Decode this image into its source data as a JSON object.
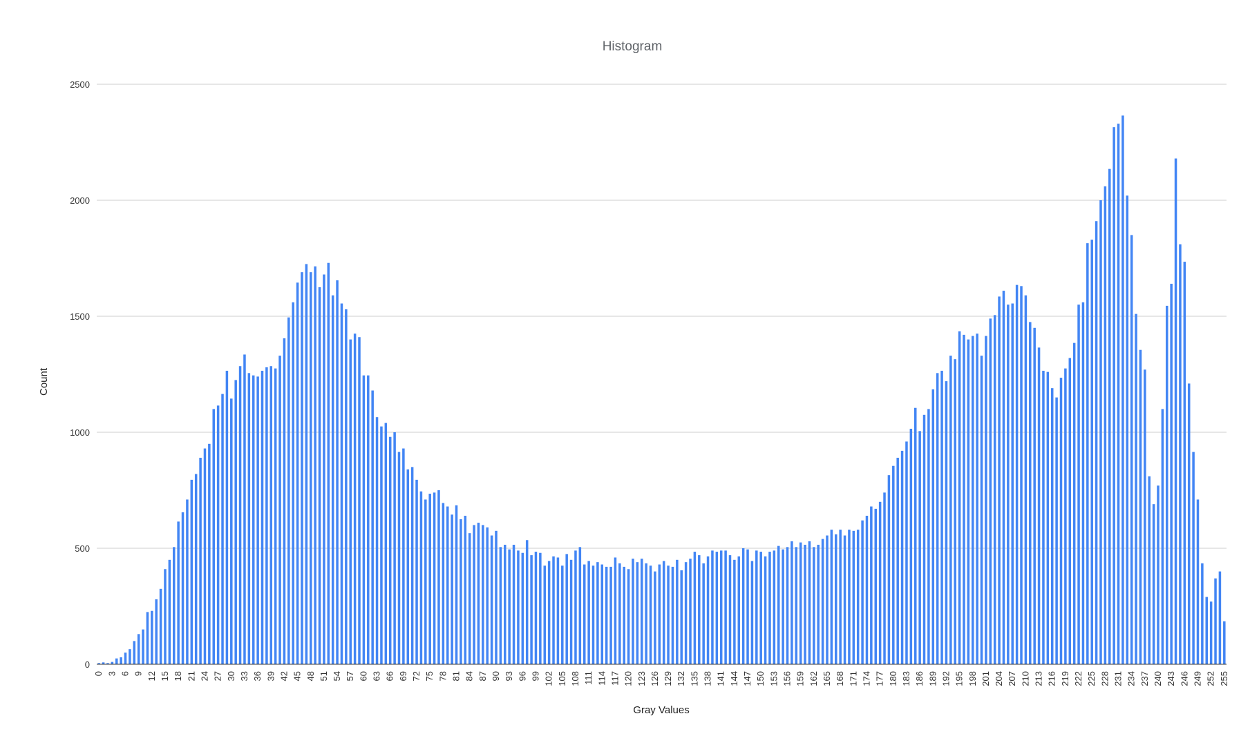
{
  "chart_data": {
    "type": "bar",
    "title": "Histogram",
    "xlabel": "Gray Values",
    "ylabel": "Count",
    "ylim": [
      0,
      2500
    ],
    "yticks": [
      0,
      500,
      1000,
      1500,
      2000,
      2500
    ],
    "grid": true,
    "legend": "none",
    "bar_color": "#4285f4",
    "x": [
      0,
      1,
      2,
      3,
      4,
      5,
      6,
      7,
      8,
      9,
      10,
      11,
      12,
      13,
      14,
      15,
      16,
      17,
      18,
      19,
      20,
      21,
      22,
      23,
      24,
      25,
      26,
      27,
      28,
      29,
      30,
      31,
      32,
      33,
      34,
      35,
      36,
      37,
      38,
      39,
      40,
      41,
      42,
      43,
      44,
      45,
      46,
      47,
      48,
      49,
      50,
      51,
      52,
      53,
      54,
      55,
      56,
      57,
      58,
      59,
      60,
      61,
      62,
      63,
      64,
      65,
      66,
      67,
      68,
      69,
      70,
      71,
      72,
      73,
      74,
      75,
      76,
      77,
      78,
      79,
      80,
      81,
      82,
      83,
      84,
      85,
      86,
      87,
      88,
      89,
      90,
      91,
      92,
      93,
      94,
      95,
      96,
      97,
      98,
      99,
      100,
      101,
      102,
      103,
      104,
      105,
      106,
      107,
      108,
      109,
      110,
      111,
      112,
      113,
      114,
      115,
      116,
      117,
      118,
      119,
      120,
      121,
      122,
      123,
      124,
      125,
      126,
      127,
      128,
      129,
      130,
      131,
      132,
      133,
      134,
      135,
      136,
      137,
      138,
      139,
      140,
      141,
      142,
      143,
      144,
      145,
      146,
      147,
      148,
      149,
      150,
      151,
      152,
      153,
      154,
      155,
      156,
      157,
      158,
      159,
      160,
      161,
      162,
      163,
      164,
      165,
      166,
      167,
      168,
      169,
      170,
      171,
      172,
      173,
      174,
      175,
      176,
      177,
      178,
      179,
      180,
      181,
      182,
      183,
      184,
      185,
      186,
      187,
      188,
      189,
      190,
      191,
      192,
      193,
      194,
      195,
      196,
      197,
      198,
      199,
      200,
      201,
      202,
      203,
      204,
      205,
      206,
      207,
      208,
      209,
      210,
      211,
      212,
      213,
      214,
      215,
      216,
      217,
      218,
      219,
      220,
      221,
      222,
      223,
      224,
      225,
      226,
      227,
      228,
      229,
      230,
      231,
      232,
      233,
      234,
      235,
      236,
      237,
      238,
      239,
      240,
      241,
      242,
      243,
      244,
      245,
      246,
      247,
      248,
      249,
      250,
      251,
      252,
      253,
      254,
      255
    ],
    "values": [
      5,
      8,
      5,
      10,
      25,
      30,
      50,
      65,
      100,
      130,
      150,
      225,
      230,
      280,
      325,
      410,
      450,
      505,
      615,
      655,
      710,
      795,
      820,
      890,
      930,
      950,
      1100,
      1115,
      1165,
      1265,
      1145,
      1225,
      1285,
      1335,
      1255,
      1245,
      1240,
      1265,
      1280,
      1285,
      1275,
      1330,
      1405,
      1495,
      1560,
      1645,
      1690,
      1725,
      1690,
      1715,
      1625,
      1680,
      1730,
      1590,
      1655,
      1555,
      1530,
      1400,
      1425,
      1410,
      1245,
      1245,
      1180,
      1065,
      1025,
      1040,
      980,
      1000,
      915,
      930,
      840,
      850,
      795,
      745,
      710,
      735,
      740,
      750,
      695,
      680,
      645,
      685,
      625,
      640,
      565,
      600,
      610,
      600,
      590,
      555,
      575,
      505,
      515,
      495,
      515,
      490,
      480,
      535,
      470,
      485,
      480,
      425,
      445,
      465,
      460,
      425,
      475,
      450,
      490,
      505,
      430,
      445,
      425,
      440,
      430,
      420,
      420,
      460,
      435,
      420,
      410,
      455,
      440,
      455,
      435,
      425,
      400,
      430,
      445,
      425,
      420,
      450,
      405,
      440,
      455,
      485,
      470,
      435,
      465,
      490,
      485,
      490,
      490,
      470,
      450,
      465,
      500,
      495,
      445,
      490,
      485,
      465,
      485,
      490,
      510,
      495,
      505,
      530,
      505,
      525,
      515,
      530,
      505,
      515,
      540,
      555,
      580,
      560,
      580,
      555,
      580,
      575,
      580,
      620,
      640,
      680,
      670,
      700,
      740,
      815,
      855,
      890,
      920,
      960,
      1015,
      1105,
      1005,
      1075,
      1100,
      1185,
      1255,
      1265,
      1220,
      1330,
      1315,
      1435,
      1420,
      1400,
      1415,
      1425,
      1330,
      1415,
      1490,
      1505,
      1585,
      1610,
      1550,
      1555,
      1635,
      1630,
      1590,
      1475,
      1450,
      1365,
      1265,
      1260,
      1190,
      1150,
      1235,
      1275,
      1320,
      1385,
      1550,
      1560,
      1815,
      1830,
      1910,
      2000,
      2060,
      2135,
      2315,
      2330,
      2365,
      2020,
      1850,
      1510,
      1355,
      1270,
      810,
      690,
      770,
      1100,
      1545,
      1640,
      2180,
      1810,
      1735,
      1210,
      915,
      710,
      435,
      290,
      270,
      370,
      400,
      185
    ],
    "xtick_labels": [
      "0",
      "3",
      "6",
      "9",
      "12",
      "15",
      "18",
      "21",
      "24",
      "27",
      "30",
      "33",
      "36",
      "39",
      "42",
      "45",
      "48",
      "51",
      "54",
      "57",
      "60",
      "63",
      "66",
      "69",
      "72",
      "75",
      "78",
      "81",
      "84",
      "87",
      "90",
      "93",
      "96",
      "99",
      "102",
      "105",
      "108",
      "111",
      "114",
      "117",
      "120",
      "123",
      "126",
      "129",
      "132",
      "135",
      "138",
      "141",
      "144",
      "147",
      "150",
      "153",
      "156",
      "159",
      "162",
      "165",
      "168",
      "171",
      "174",
      "177",
      "180",
      "183",
      "186",
      "189",
      "192",
      "195",
      "198",
      "201",
      "204",
      "207",
      "210",
      "213",
      "216",
      "219",
      "222",
      "225",
      "228",
      "231",
      "234",
      "237",
      "240",
      "243",
      "246",
      "249",
      "252",
      "255"
    ]
  }
}
